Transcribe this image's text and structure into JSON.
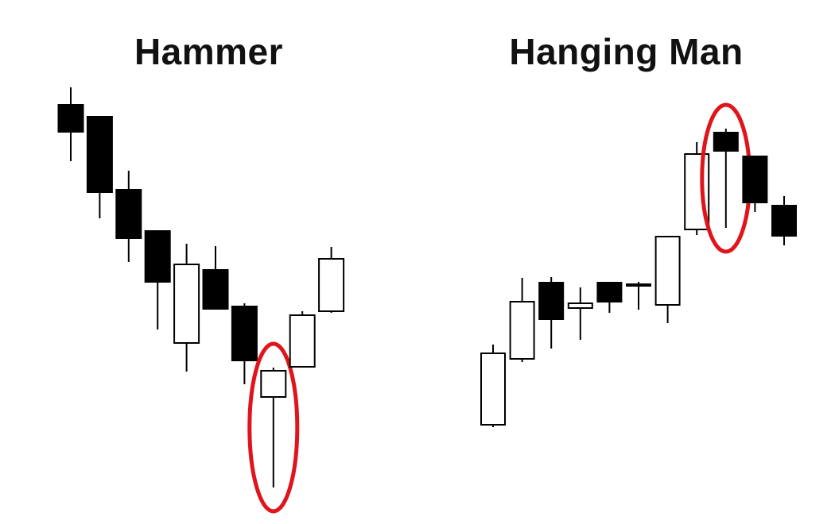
{
  "colors": {
    "bullish_fill": "#ffffff",
    "bearish_fill": "#000000",
    "outline": "#000000",
    "highlight": "#e0151b"
  },
  "chart_data": [
    {
      "type": "candlestick",
      "title": "Hammer",
      "axes_shown": false,
      "highlighted_index": 7,
      "candles": [
        {
          "open": 528,
          "close": 494,
          "high": 550,
          "low": 457
        },
        {
          "open": 513,
          "close": 418,
          "high": 513,
          "low": 385
        },
        {
          "open": 421,
          "close": 360,
          "high": 445,
          "low": 330
        },
        {
          "open": 369,
          "close": 305,
          "high": 369,
          "low": 245
        },
        {
          "open": 228,
          "close": 327,
          "high": 353,
          "low": 192
        },
        {
          "open": 320,
          "close": 271,
          "high": 350,
          "low": 271
        },
        {
          "open": 274,
          "close": 206,
          "high": 278,
          "low": 176
        },
        {
          "open": 160,
          "close": 193,
          "high": 197,
          "low": 46
        },
        {
          "open": 198,
          "close": 263,
          "high": 268,
          "low": 198
        },
        {
          "open": 268,
          "close": 334,
          "high": 349,
          "low": 266
        }
      ]
    },
    {
      "type": "candlestick",
      "title": "Hanging Man",
      "axes_shown": false,
      "highlighted_index": 8,
      "candles": [
        {
          "open": 125,
          "close": 215,
          "high": 226,
          "low": 122
        },
        {
          "open": 208,
          "close": 280,
          "high": 310,
          "low": 204
        },
        {
          "open": 304,
          "close": 258,
          "high": 311,
          "low": 221
        },
        {
          "open": 272,
          "close": 278,
          "high": 298,
          "low": 232
        },
        {
          "open": 304,
          "close": 280,
          "high": 304,
          "low": 266
        },
        {
          "open": 302,
          "close": 302,
          "high": 305,
          "low": 270
        },
        {
          "open": 276,
          "close": 362,
          "high": 362,
          "low": 253
        },
        {
          "open": 371,
          "close": 466,
          "high": 481,
          "low": 364
        },
        {
          "open": 493,
          "close": 470,
          "high": 498,
          "low": 373
        },
        {
          "open": 463,
          "close": 405,
          "high": 463,
          "low": 393
        },
        {
          "open": 401,
          "close": 363,
          "high": 413,
          "low": 351
        }
      ]
    }
  ]
}
